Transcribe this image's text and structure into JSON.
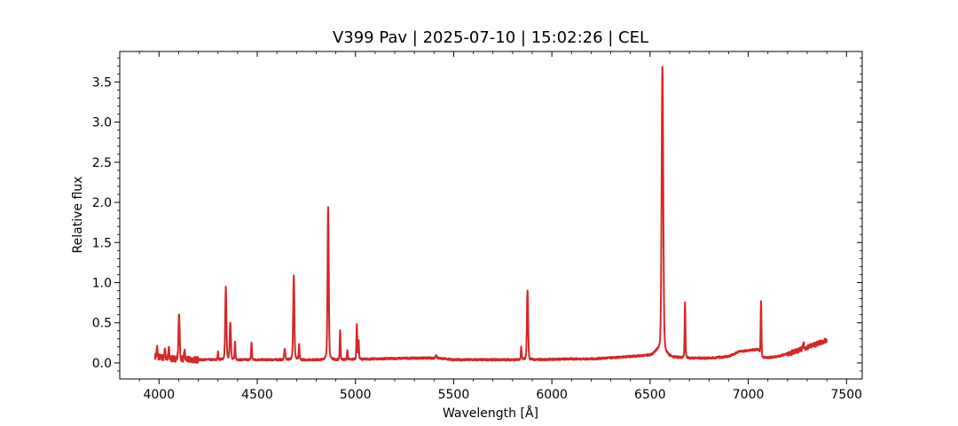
{
  "chart_data": {
    "type": "line",
    "title": "V399 Pav | 2025-07-10 | 15:02:26 | CEL",
    "xlabel": "Wavelength [Å]",
    "ylabel": "Relative flux",
    "xlim": [
      3800,
      7580
    ],
    "ylim": [
      -0.2,
      3.88
    ],
    "grid": false,
    "legend": "none",
    "xticks": [
      4000,
      4500,
      5000,
      5500,
      6000,
      6500,
      7000,
      7500
    ],
    "yticks": [
      0.0,
      0.5,
      1.0,
      1.5,
      2.0,
      2.5,
      3.0,
      3.5
    ],
    "xtick_labels": [
      "4000",
      "4500",
      "5000",
      "5500",
      "6000",
      "6500",
      "7000",
      "7500"
    ],
    "ytick_labels": [
      "0.0",
      "0.5",
      "1.0",
      "1.5",
      "2.0",
      "2.5",
      "3.0",
      "3.5"
    ],
    "series": [
      {
        "color": "#d62728",
        "continuum": [
          [
            3980,
            0.08
          ],
          [
            4050,
            0.05
          ],
          [
            4150,
            0.04
          ],
          [
            4300,
            0.04
          ],
          [
            4500,
            0.04
          ],
          [
            4700,
            0.04
          ],
          [
            4900,
            0.04
          ],
          [
            5100,
            0.05
          ],
          [
            5300,
            0.06
          ],
          [
            5420,
            0.06
          ],
          [
            5500,
            0.04
          ],
          [
            5700,
            0.04
          ],
          [
            5900,
            0.04
          ],
          [
            6100,
            0.05
          ],
          [
            6200,
            0.05
          ],
          [
            6350,
            0.07
          ],
          [
            6500,
            0.1
          ],
          [
            6540,
            0.15
          ],
          [
            6600,
            0.08
          ],
          [
            6700,
            0.06
          ],
          [
            6800,
            0.06
          ],
          [
            6900,
            0.08
          ],
          [
            6950,
            0.14
          ],
          [
            7050,
            0.17
          ],
          [
            7070,
            0.06
          ],
          [
            7150,
            0.08
          ],
          [
            7250,
            0.15
          ],
          [
            7350,
            0.24
          ],
          [
            7400,
            0.28
          ]
        ],
        "lines": [
          {
            "wl": 3990,
            "peak": 0.2,
            "width": 2
          },
          {
            "wl": 4030,
            "peak": 0.19,
            "width": 2
          },
          {
            "wl": 4050,
            "peak": 0.2,
            "width": 2
          },
          {
            "wl": 4102,
            "peak": 0.6,
            "width": 3
          },
          {
            "wl": 4130,
            "peak": 0.16,
            "width": 2
          },
          {
            "wl": 4300,
            "peak": 0.14,
            "width": 2
          },
          {
            "wl": 4340,
            "peak": 0.94,
            "width": 3
          },
          {
            "wl": 4363,
            "peak": 0.5,
            "width": 3
          },
          {
            "wl": 4387,
            "peak": 0.26,
            "width": 2
          },
          {
            "wl": 4471,
            "peak": 0.26,
            "width": 2
          },
          {
            "wl": 4640,
            "peak": 0.17,
            "width": 3
          },
          {
            "wl": 4686,
            "peak": 1.1,
            "width": 3
          },
          {
            "wl": 4713,
            "peak": 0.22,
            "width": 2
          },
          {
            "wl": 4861,
            "peak": 1.95,
            "width": 3
          },
          {
            "wl": 4922,
            "peak": 0.4,
            "width": 2
          },
          {
            "wl": 4959,
            "peak": 0.16,
            "width": 2
          },
          {
            "wl": 5007,
            "peak": 0.48,
            "width": 2
          },
          {
            "wl": 5016,
            "peak": 0.28,
            "width": 2
          },
          {
            "wl": 5411,
            "peak": 0.1,
            "width": 3
          },
          {
            "wl": 5844,
            "peak": 0.2,
            "width": 2
          },
          {
            "wl": 5876,
            "peak": 0.91,
            "width": 3
          },
          {
            "wl": 6563,
            "peak": 3.7,
            "width": 4
          },
          {
            "wl": 6678,
            "peak": 0.75,
            "width": 2
          },
          {
            "wl": 7065,
            "peak": 0.78,
            "width": 2
          },
          {
            "wl": 7281,
            "peak": 0.26,
            "width": 2
          }
        ]
      }
    ]
  }
}
